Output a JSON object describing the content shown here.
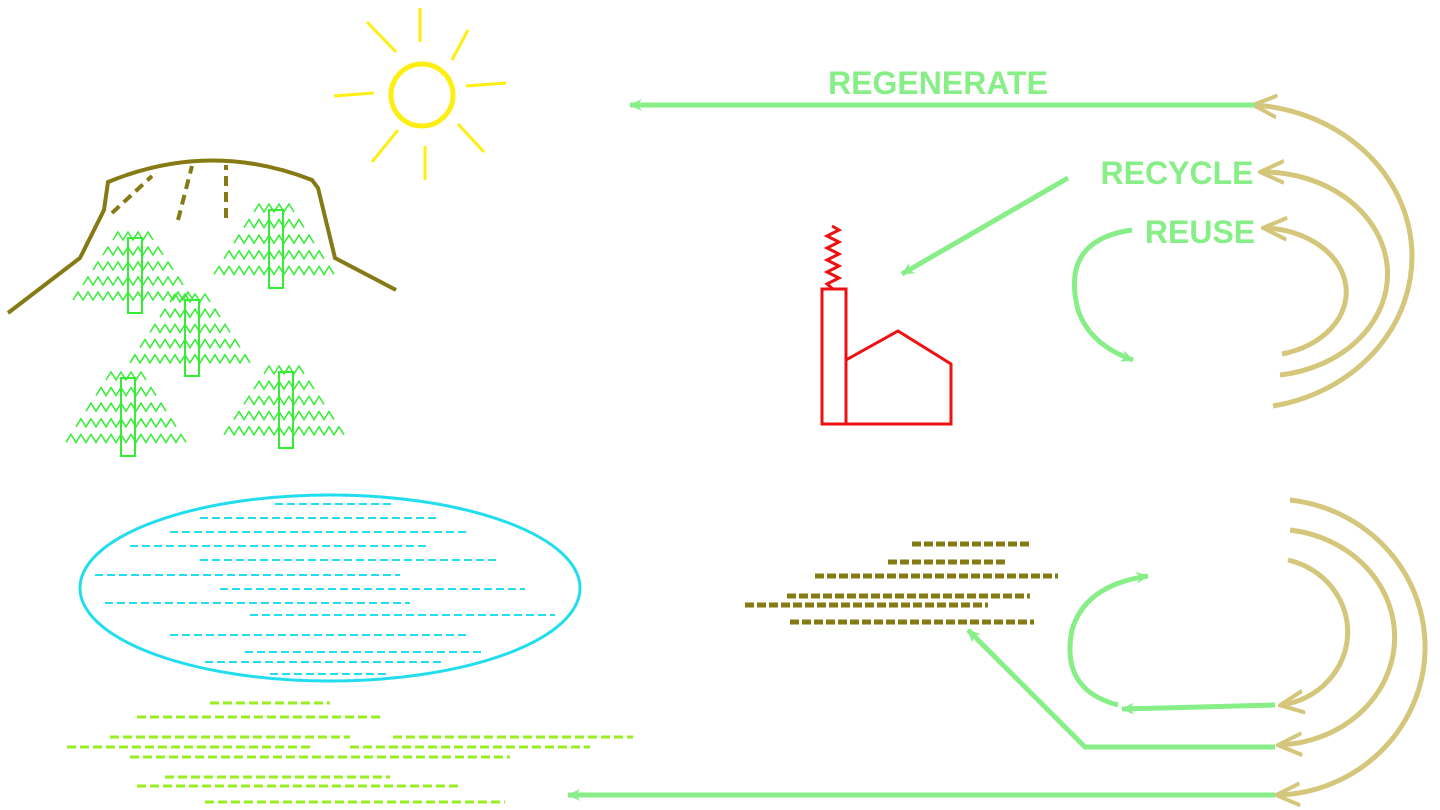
{
  "labels": {
    "regenerate": "REGENERATE",
    "recycle": "RECYCLE",
    "reuse": "REUSE"
  }
}
